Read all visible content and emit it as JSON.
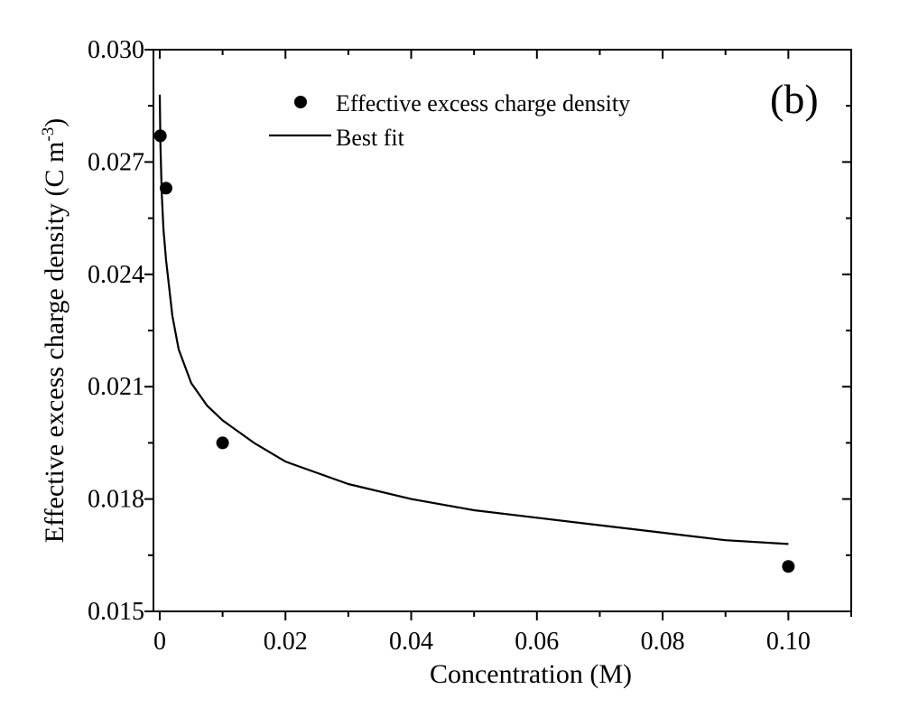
{
  "chart_data": {
    "type": "scatter",
    "panel_label": "(b)",
    "xlabel": "Concentration (M)",
    "ylabel": "Effective excess charge density (C m",
    "ylabel_sup": "-3",
    "ylabel_close": ")",
    "xlim": [
      -0.001,
      0.11
    ],
    "ylim": [
      0.015,
      0.03
    ],
    "xticks": [
      0,
      0.02,
      0.04,
      0.06,
      0.08,
      0.1
    ],
    "xtick_labels": [
      "0",
      "0.02",
      "0.04",
      "0.06",
      "0.08",
      "0.10"
    ],
    "yticks": [
      0.015,
      0.018,
      0.021,
      0.024,
      0.027,
      0.03
    ],
    "ytick_labels": [
      "0.015",
      "0.018",
      "0.021",
      "0.024",
      "0.027",
      "0.030"
    ],
    "legend": {
      "position": "top-center",
      "entries": [
        {
          "label": "Effective excess charge density",
          "marker": "circle"
        },
        {
          "label": "Best fit",
          "marker": "line"
        }
      ]
    },
    "series": [
      {
        "name": "Effective excess charge density",
        "kind": "scatter",
        "x": [
          0.0001,
          0.001,
          0.01,
          0.1
        ],
        "y": [
          0.0277,
          0.0263,
          0.0195,
          0.0162
        ]
      },
      {
        "name": "Best fit",
        "kind": "line",
        "x": [
          1e-05,
          0.0001,
          0.0003,
          0.0006,
          0.001,
          0.002,
          0.003,
          0.005,
          0.0075,
          0.01,
          0.015,
          0.02,
          0.03,
          0.04,
          0.05,
          0.06,
          0.07,
          0.08,
          0.09,
          0.1
        ],
        "y": [
          0.0288,
          0.0275,
          0.0262,
          0.0252,
          0.0244,
          0.0229,
          0.022,
          0.0211,
          0.0205,
          0.0201,
          0.0195,
          0.019,
          0.0184,
          0.018,
          0.0177,
          0.0175,
          0.0173,
          0.0171,
          0.0169,
          0.0168
        ]
      }
    ],
    "colors": {
      "marker": "#000000",
      "line": "#000000",
      "axes": "#000000"
    }
  }
}
